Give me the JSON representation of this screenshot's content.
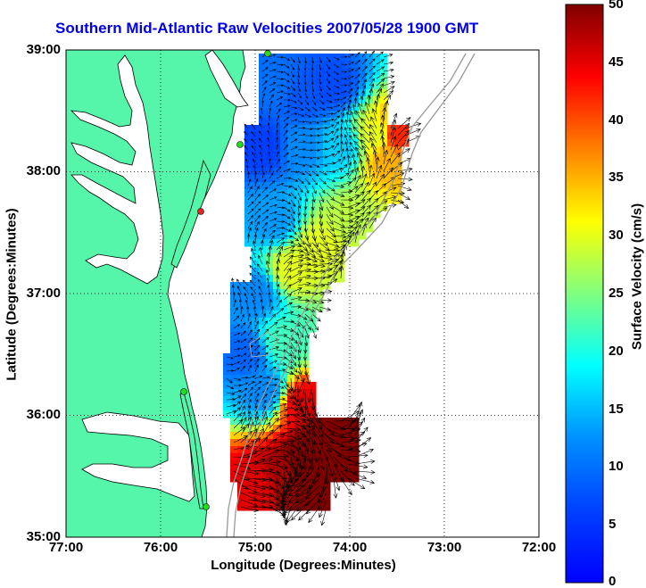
{
  "title": "Southern Mid-Atlantic Raw Velocities 2007/05/28 1900 GMT",
  "x_axis": {
    "label": "Longitude (Degrees:Minutes)",
    "ticks": [
      "77:00",
      "76:00",
      "75:00",
      "74:00",
      "73:00",
      "72:00"
    ]
  },
  "y_axis": {
    "label": "Latitude (Degrees:Minutes)",
    "ticks": [
      "39:00",
      "38:00",
      "37:00",
      "36:00",
      "35:00"
    ]
  },
  "colorbar": {
    "label": "Surface Velocity (cm/s)",
    "ticks": [
      "50",
      "45",
      "40",
      "35",
      "30",
      "25",
      "20",
      "15",
      "10",
      "5",
      "0"
    ],
    "min": 0,
    "max": 50,
    "colormap": "jet"
  },
  "colors": {
    "title": "#0000ee",
    "land": "#55f5aa",
    "station_active": "#22dd22",
    "station_inactive": "#ee2222",
    "bathymetry": "#999999",
    "grid": "#000000"
  },
  "chart_data": {
    "type": "heatmap",
    "xlim": [
      -77,
      -72
    ],
    "ylim": [
      35,
      39
    ],
    "grid": "dotted",
    "variable": "Surface Velocity (cm/s)",
    "velocity_field": [
      {
        "lon": -74.8,
        "lat": 38.7,
        "speed": 10
      },
      {
        "lon": -74.5,
        "lat": 38.6,
        "speed": 8
      },
      {
        "lon": -74.2,
        "lat": 38.7,
        "speed": 7
      },
      {
        "lon": -74.9,
        "lat": 38.2,
        "speed": 6
      },
      {
        "lon": -74.5,
        "lat": 38.2,
        "speed": 12
      },
      {
        "lon": -74.1,
        "lat": 38.2,
        "speed": 16
      },
      {
        "lon": -73.7,
        "lat": 38.3,
        "speed": 30
      },
      {
        "lon": -73.5,
        "lat": 38.3,
        "speed": 42
      },
      {
        "lon": -73.6,
        "lat": 38.1,
        "speed": 35
      },
      {
        "lon": -74.0,
        "lat": 37.6,
        "speed": 28
      },
      {
        "lon": -74.3,
        "lat": 37.4,
        "speed": 30
      },
      {
        "lon": -74.8,
        "lat": 37.6,
        "speed": 13
      },
      {
        "lon": -74.6,
        "lat": 37.2,
        "speed": 30
      },
      {
        "lon": -75.0,
        "lat": 37.0,
        "speed": 12
      },
      {
        "lon": -74.7,
        "lat": 36.6,
        "speed": 22
      },
      {
        "lon": -75.1,
        "lat": 36.5,
        "speed": 9
      },
      {
        "lon": -74.9,
        "lat": 36.2,
        "speed": 12
      },
      {
        "lon": -74.5,
        "lat": 36.1,
        "speed": 45
      },
      {
        "lon": -74.2,
        "lat": 35.9,
        "speed": 55
      },
      {
        "lon": -74.4,
        "lat": 35.6,
        "speed": 55
      },
      {
        "lon": -74.0,
        "lat": 35.7,
        "speed": 52
      },
      {
        "lon": -74.7,
        "lat": 35.5,
        "speed": 48
      },
      {
        "lon": -75.0,
        "lat": 35.4,
        "speed": 45
      },
      {
        "lon": -74.3,
        "lat": 35.3,
        "speed": 50
      }
    ]
  }
}
